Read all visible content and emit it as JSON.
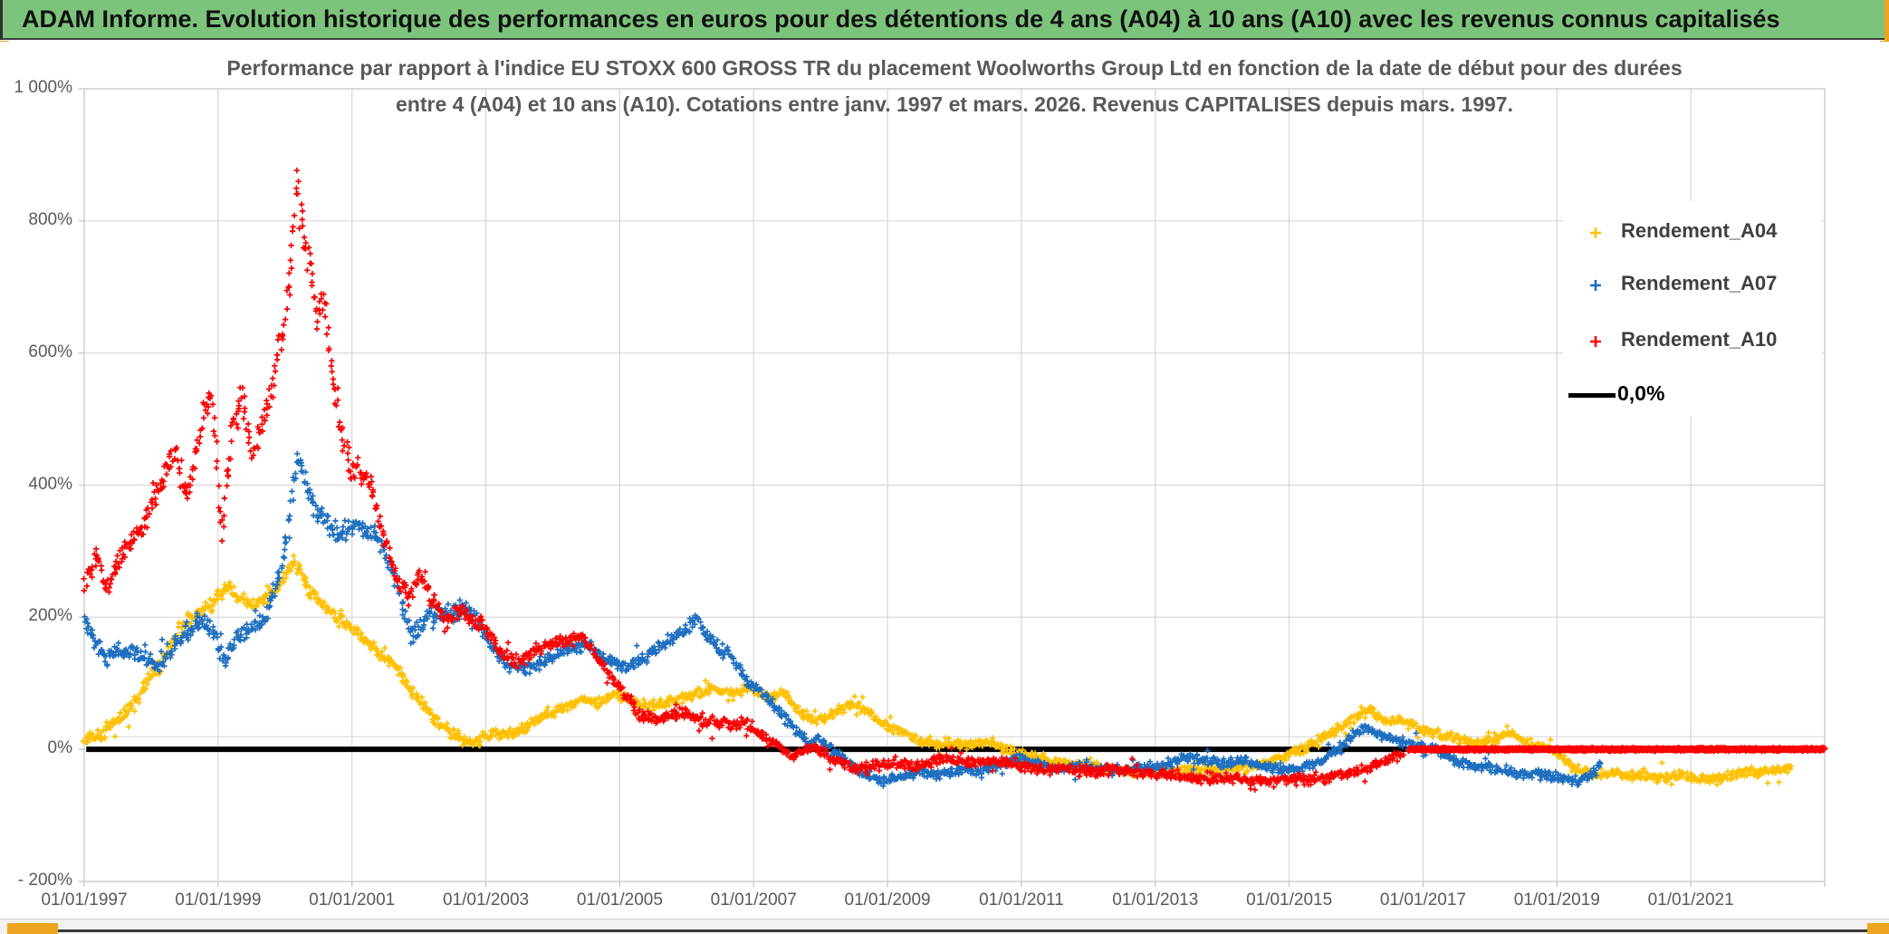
{
  "banner": {
    "title": "ADAM Informe. Evolution historique des performances en euros pour des détentions de 4 ans (A04) à 10 ans (A10) avec les revenus connus capitalisés",
    "bg_color": "#7CC47C"
  },
  "chart": {
    "title_line1": "Performance par rapport à l'indice EU STOXX 600 GROSS TR  du placement Woolworths Group Ltd en fonction de la date de début pour des durées",
    "title_line2": "entre 4 (A04) et 10 ans (A10). Cotations entre janv. 1997 et mars. 2026. Revenus CAPITALISES depuis mars. 1997.",
    "legend": [
      {
        "label": "Rendement_A04",
        "color": "#FFC000",
        "marker": "plus"
      },
      {
        "label": "Rendement_A07",
        "color": "#1E6FC0",
        "marker": "plus"
      },
      {
        "label": "Rendement_A10",
        "color": "#FA0000",
        "marker": "plus"
      },
      {
        "label": "0,0%",
        "color": "#000000",
        "marker": "line"
      }
    ]
  },
  "chart_data": {
    "type": "scatter",
    "title": "Performance par rapport à l'indice EU STOXX 600 GROSS TR du placement Woolworths Group Ltd en fonction de la date de début pour des durées entre 4 (A04) et 10 ans (A10). Cotations entre janv. 1997 et mars. 2026. Revenus CAPITALISES depuis mars. 1997.",
    "grid": true,
    "legend_position": "top-right",
    "marker": "plus",
    "x_axis": {
      "start_year": 1997,
      "end_year": 2023,
      "tick_step_years": 2,
      "tick_labels": [
        "01/01/1997",
        "01/01/1999",
        "01/01/2001",
        "01/01/2003",
        "01/01/2005",
        "01/01/2007",
        "01/01/2009",
        "01/01/2011",
        "01/01/2013",
        "01/01/2015",
        "01/01/2017",
        "01/01/2019",
        "01/01/2021"
      ]
    },
    "y_axis": {
      "min": -200,
      "max": 1000,
      "tick_step": 200,
      "unit": "percent",
      "tick_labels": [
        "1 000%",
        "800%",
        "600%",
        "400%",
        "200%",
        "0%",
        "- 200%"
      ],
      "tick_values": [
        1000,
        800,
        600,
        400,
        200,
        0,
        -200
      ]
    },
    "series": [
      {
        "name": "Rendement_A04",
        "color": "#FFC000",
        "points": [
          [
            1997.0,
            15
          ],
          [
            1997.25,
            20
          ],
          [
            1997.5,
            45
          ],
          [
            1997.75,
            70
          ],
          [
            1998.0,
            110
          ],
          [
            1998.2,
            140
          ],
          [
            1998.45,
            185
          ],
          [
            1998.7,
            205
          ],
          [
            1998.95,
            225
          ],
          [
            1999.15,
            245
          ],
          [
            1999.35,
            228
          ],
          [
            1999.55,
            215
          ],
          [
            1999.75,
            235
          ],
          [
            1999.95,
            252
          ],
          [
            2000.15,
            287
          ],
          [
            2000.35,
            240
          ],
          [
            2000.55,
            220
          ],
          [
            2000.75,
            200
          ],
          [
            2000.95,
            190
          ],
          [
            2001.15,
            170
          ],
          [
            2001.35,
            150
          ],
          [
            2001.55,
            135
          ],
          [
            2001.75,
            110
          ],
          [
            2001.95,
            80
          ],
          [
            2002.15,
            55
          ],
          [
            2002.35,
            35
          ],
          [
            2002.55,
            20
          ],
          [
            2002.75,
            10
          ],
          [
            2002.95,
            15
          ],
          [
            2003.15,
            25
          ],
          [
            2003.35,
            22
          ],
          [
            2003.55,
            30
          ],
          [
            2003.75,
            45
          ],
          [
            2003.95,
            55
          ],
          [
            2004.2,
            65
          ],
          [
            2004.45,
            75
          ],
          [
            2004.7,
            70
          ],
          [
            2004.95,
            85
          ],
          [
            2005.2,
            72
          ],
          [
            2005.5,
            65
          ],
          [
            2005.8,
            75
          ],
          [
            2006.1,
            82
          ],
          [
            2006.4,
            92
          ],
          [
            2006.7,
            85
          ],
          [
            2006.95,
            95
          ],
          [
            2007.2,
            80
          ],
          [
            2007.45,
            85
          ],
          [
            2007.7,
            55
          ],
          [
            2007.95,
            45
          ],
          [
            2008.2,
            55
          ],
          [
            2008.5,
            70
          ],
          [
            2008.75,
            55
          ],
          [
            2009.0,
            35
          ],
          [
            2009.25,
            25
          ],
          [
            2009.5,
            12
          ],
          [
            2009.75,
            5
          ],
          [
            2010.0,
            10
          ],
          [
            2010.3,
            8
          ],
          [
            2010.6,
            10
          ],
          [
            2010.9,
            -5
          ],
          [
            2011.2,
            -10
          ],
          [
            2011.5,
            -18
          ],
          [
            2011.8,
            -25
          ],
          [
            2012.1,
            -25
          ],
          [
            2012.4,
            -30
          ],
          [
            2012.7,
            -35
          ],
          [
            2013.0,
            -32
          ],
          [
            2013.3,
            -35
          ],
          [
            2013.6,
            -30
          ],
          [
            2013.9,
            -32
          ],
          [
            2014.2,
            -30
          ],
          [
            2014.5,
            -25
          ],
          [
            2014.8,
            -15
          ],
          [
            2015.1,
            -5
          ],
          [
            2015.4,
            10
          ],
          [
            2015.7,
            30
          ],
          [
            2015.95,
            45
          ],
          [
            2016.2,
            60
          ],
          [
            2016.45,
            42
          ],
          [
            2016.7,
            45
          ],
          [
            2016.95,
            30
          ],
          [
            2017.2,
            25
          ],
          [
            2017.5,
            15
          ],
          [
            2017.8,
            10
          ],
          [
            2018.05,
            15
          ],
          [
            2018.3,
            25
          ],
          [
            2018.55,
            10
          ],
          [
            2018.8,
            5
          ],
          [
            2019.05,
            -10
          ],
          [
            2019.3,
            -30
          ],
          [
            2019.55,
            -38
          ],
          [
            2019.8,
            -35
          ],
          [
            2020.05,
            -40
          ],
          [
            2020.3,
            -38
          ],
          [
            2020.55,
            -42
          ],
          [
            2020.8,
            -40
          ],
          [
            2021.05,
            -42
          ],
          [
            2021.3,
            -45
          ],
          [
            2021.55,
            -42
          ],
          [
            2021.8,
            -35
          ],
          [
            2022.05,
            -32
          ],
          [
            2022.3,
            -30
          ],
          [
            2022.5,
            -28
          ]
        ]
      },
      {
        "name": "Rendement_A07",
        "color": "#1E6FC0",
        "points": [
          [
            1997.0,
            195
          ],
          [
            1997.3,
            140
          ],
          [
            1997.6,
            150
          ],
          [
            1997.9,
            140
          ],
          [
            1998.1,
            125
          ],
          [
            1998.4,
            165
          ],
          [
            1998.7,
            195
          ],
          [
            1998.9,
            185
          ],
          [
            1999.1,
            130
          ],
          [
            1999.3,
            170
          ],
          [
            1999.5,
            185
          ],
          [
            1999.7,
            200
          ],
          [
            1999.9,
            260
          ],
          [
            2000.05,
            330
          ],
          [
            2000.2,
            450
          ],
          [
            2000.35,
            385
          ],
          [
            2000.5,
            360
          ],
          [
            2000.7,
            330
          ],
          [
            2000.9,
            330
          ],
          [
            2001.1,
            345
          ],
          [
            2001.3,
            330
          ],
          [
            2001.5,
            295
          ],
          [
            2001.7,
            240
          ],
          [
            2001.9,
            170
          ],
          [
            2002.1,
            195
          ],
          [
            2002.3,
            205
          ],
          [
            2002.5,
            200
          ],
          [
            2002.7,
            215
          ],
          [
            2002.9,
            185
          ],
          [
            2003.1,
            155
          ],
          [
            2003.3,
            130
          ],
          [
            2003.6,
            120
          ],
          [
            2003.9,
            135
          ],
          [
            2004.2,
            150
          ],
          [
            2004.5,
            160
          ],
          [
            2004.8,
            135
          ],
          [
            2005.1,
            125
          ],
          [
            2005.4,
            140
          ],
          [
            2005.7,
            162
          ],
          [
            2005.95,
            180
          ],
          [
            2006.15,
            196
          ],
          [
            2006.4,
            160
          ],
          [
            2006.65,
            145
          ],
          [
            2006.9,
            100
          ],
          [
            2007.2,
            80
          ],
          [
            2007.5,
            45
          ],
          [
            2007.8,
            10
          ],
          [
            2008.0,
            15
          ],
          [
            2008.3,
            -10
          ],
          [
            2008.6,
            -35
          ],
          [
            2008.9,
            -48
          ],
          [
            2009.2,
            -40
          ],
          [
            2009.5,
            -35
          ],
          [
            2009.8,
            -38
          ],
          [
            2010.1,
            -30
          ],
          [
            2010.4,
            -35
          ],
          [
            2010.7,
            -20
          ],
          [
            2011.0,
            -15
          ],
          [
            2011.3,
            -25
          ],
          [
            2011.6,
            -30
          ],
          [
            2011.9,
            -25
          ],
          [
            2012.2,
            -30
          ],
          [
            2012.5,
            -32
          ],
          [
            2012.8,
            -28
          ],
          [
            2013.1,
            -25
          ],
          [
            2013.4,
            -12
          ],
          [
            2013.7,
            -15
          ],
          [
            2014.0,
            -22
          ],
          [
            2014.3,
            -18
          ],
          [
            2014.6,
            -25
          ],
          [
            2014.9,
            -30
          ],
          [
            2015.2,
            -28
          ],
          [
            2015.5,
            -15
          ],
          [
            2015.8,
            5
          ],
          [
            2016.0,
            25
          ],
          [
            2016.15,
            35
          ],
          [
            2016.4,
            20
          ],
          [
            2016.7,
            10
          ],
          [
            2016.9,
            5
          ],
          [
            2017.2,
            0
          ],
          [
            2017.5,
            -18
          ],
          [
            2017.8,
            -25
          ],
          [
            2018.1,
            -30
          ],
          [
            2018.4,
            -38
          ],
          [
            2018.7,
            -35
          ],
          [
            2019.0,
            -42
          ],
          [
            2019.3,
            -48
          ],
          [
            2019.5,
            -40
          ],
          [
            2019.65,
            -22
          ]
        ]
      },
      {
        "name": "Rendement_A10",
        "color": "#FA0000",
        "points": [
          [
            1997.0,
            255
          ],
          [
            1997.2,
            290
          ],
          [
            1997.35,
            245
          ],
          [
            1997.6,
            300
          ],
          [
            1997.9,
            345
          ],
          [
            1998.1,
            390
          ],
          [
            1998.35,
            450
          ],
          [
            1998.55,
            380
          ],
          [
            1998.75,
            490
          ],
          [
            1998.9,
            555
          ],
          [
            1999.05,
            330
          ],
          [
            1999.2,
            470
          ],
          [
            1999.35,
            540
          ],
          [
            1999.5,
            450
          ],
          [
            1999.7,
            500
          ],
          [
            1999.85,
            575
          ],
          [
            2000.0,
            650
          ],
          [
            2000.1,
            745
          ],
          [
            2000.18,
            870
          ],
          [
            2000.28,
            770
          ],
          [
            2000.38,
            730
          ],
          [
            2000.48,
            650
          ],
          [
            2000.58,
            690
          ],
          [
            2000.68,
            580
          ],
          [
            2000.8,
            505
          ],
          [
            2000.95,
            425
          ],
          [
            2001.1,
            430
          ],
          [
            2001.3,
            390
          ],
          [
            2001.5,
            310
          ],
          [
            2001.7,
            255
          ],
          [
            2001.85,
            230
          ],
          [
            2002.0,
            262
          ],
          [
            2002.2,
            228
          ],
          [
            2002.4,
            192
          ],
          [
            2002.6,
            208
          ],
          [
            2002.8,
            196
          ],
          [
            2003.0,
            186
          ],
          [
            2003.2,
            150
          ],
          [
            2003.5,
            130
          ],
          [
            2003.8,
            155
          ],
          [
            2004.1,
            162
          ],
          [
            2004.45,
            172
          ],
          [
            2004.75,
            126
          ],
          [
            2005.0,
            95
          ],
          [
            2005.3,
            52
          ],
          [
            2005.6,
            45
          ],
          [
            2005.9,
            56
          ],
          [
            2006.2,
            45
          ],
          [
            2006.5,
            40
          ],
          [
            2006.9,
            40
          ],
          [
            2007.2,
            15
          ],
          [
            2007.6,
            -10
          ],
          [
            2007.9,
            4
          ],
          [
            2008.2,
            -16
          ],
          [
            2008.5,
            -30
          ],
          [
            2008.8,
            -25
          ],
          [
            2009.1,
            -20
          ],
          [
            2009.5,
            -25
          ],
          [
            2009.8,
            -12
          ],
          [
            2010.1,
            -20
          ],
          [
            2010.5,
            -16
          ],
          [
            2010.9,
            -25
          ],
          [
            2011.3,
            -30
          ],
          [
            2011.7,
            -30
          ],
          [
            2012.1,
            -35
          ],
          [
            2012.5,
            -30
          ],
          [
            2012.9,
            -36
          ],
          [
            2013.3,
            -40
          ],
          [
            2013.7,
            -46
          ],
          [
            2014.1,
            -42
          ],
          [
            2014.5,
            -48
          ],
          [
            2014.9,
            -45
          ],
          [
            2015.3,
            -45
          ],
          [
            2015.7,
            -40
          ],
          [
            2016.0,
            -34
          ],
          [
            2016.3,
            -24
          ],
          [
            2016.55,
            -14
          ],
          [
            2016.7,
            -5
          ]
        ],
        "flat_zero_from": 2016.78,
        "flat_zero_to": 2023.0
      },
      {
        "name": "0,0%",
        "color": "#000000",
        "type": "line",
        "points": [
          [
            1997.03,
            0
          ],
          [
            2023.0,
            0
          ]
        ]
      }
    ]
  },
  "bottom_bar": {},
  "icons": {
    "legend_marker": "plus-icon"
  }
}
